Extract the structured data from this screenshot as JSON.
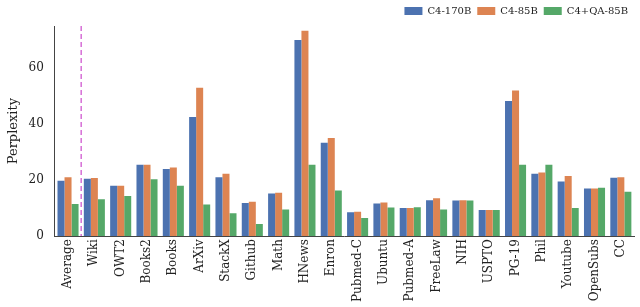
{
  "chart_data": {
    "type": "bar",
    "y_label": "Perplexity",
    "categories": [
      "Average",
      "Wiki",
      "OWT2",
      "Books2",
      "Books",
      "ArXiv",
      "StackX",
      "Github",
      "Math",
      "HNews",
      "Enron",
      "Pubmed-C",
      "Ubuntu",
      "Pubmed-A",
      "FreeLaw",
      "NIH",
      "USPTO",
      "PG-19",
      "Phil",
      "Youtube",
      "OpenSubs",
      "CC"
    ],
    "series": [
      {
        "name": "C4-170B",
        "color": "#4c72b0",
        "values": [
          19.8,
          20.5,
          18,
          25.5,
          24,
          42.5,
          21,
          11.8,
          15.2,
          70,
          33.3,
          8.5,
          11.6,
          10,
          12.8,
          12.7,
          9.3,
          48.2,
          22.3,
          19.5,
          17,
          20.8
        ]
      },
      {
        "name": "C4-85B",
        "color": "#dd8452",
        "values": [
          21,
          20.7,
          18,
          25.5,
          24.5,
          53,
          22.3,
          12.3,
          15.5,
          73.3,
          35,
          8.7,
          12,
          10,
          13.5,
          12.8,
          9.3,
          52,
          22.7,
          21.5,
          17,
          21
        ]
      },
      {
        "name": "C4+QA-85B",
        "color": "#55a868",
        "values": [
          11.5,
          13.2,
          14.3,
          20.3,
          18,
          11.3,
          8.2,
          4.3,
          9.5,
          25.5,
          16.3,
          6.5,
          10.2,
          10.3,
          9.5,
          12.7,
          9.3,
          25.5,
          25.5,
          10,
          17.3,
          15.8
        ]
      }
    ],
    "ylim": [
      0,
      75
    ],
    "yticks": [
      0,
      20,
      40,
      60
    ],
    "grid": false,
    "legend": "upper right"
  }
}
